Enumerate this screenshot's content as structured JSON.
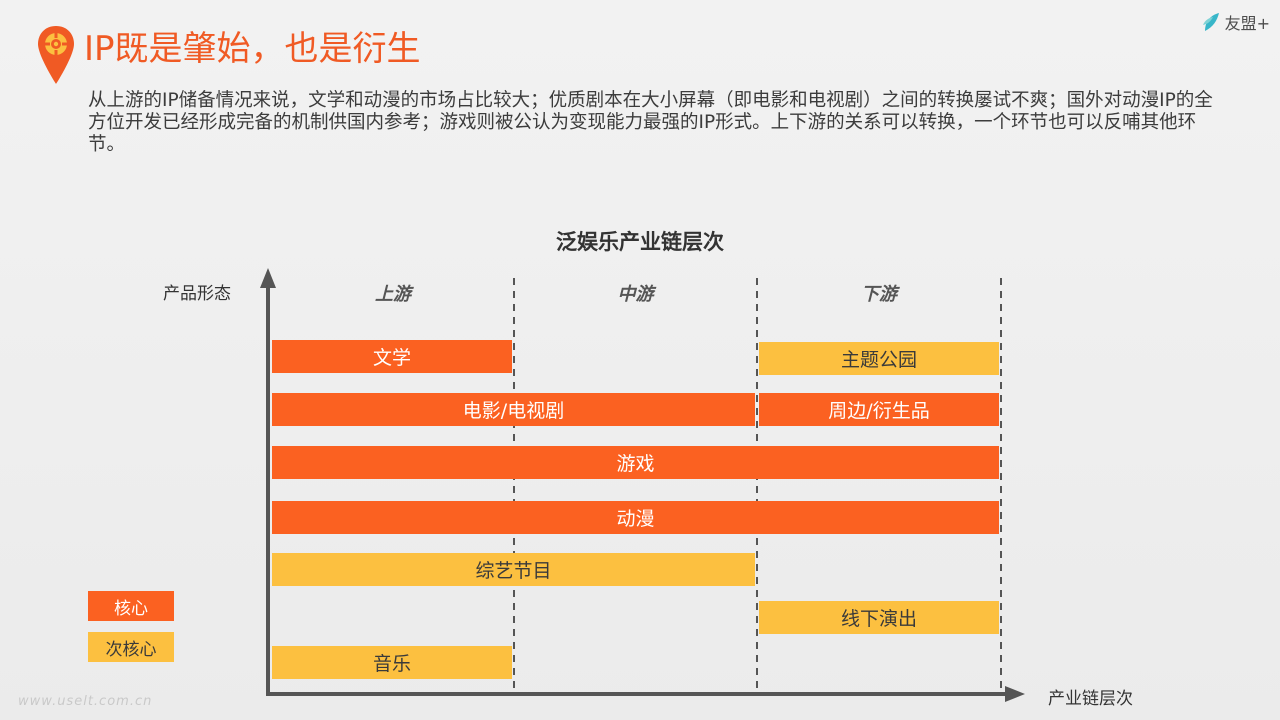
{
  "header": {
    "title": "IP既是肇始，也是衍生",
    "brand": "友盟+"
  },
  "intro": "从上游的IP储备情况来说，文学和动漫的市场占比较大；优质剧本在大小屏幕（即电影和电视剧）之间的转换屡试不爽；国外对动漫IP的全方位开发已经形成完备的机制供国内参考；游戏则被公认为变现能力最强的IP形式。上下游的关系可以转换，一个环节也可以反哺其他环节。",
  "colors": {
    "title": "#f05a24",
    "core": "#fb6121",
    "secondary": "#fcc040"
  },
  "chart_data": {
    "type": "diagram",
    "title": "泛娱乐产业链层次",
    "ylabel": "产品形态",
    "xlabel": "产业链层次",
    "stages": [
      "上游",
      "中游",
      "下游"
    ],
    "bars": [
      {
        "label": "文学",
        "start": 0,
        "end": 1,
        "kind": "core"
      },
      {
        "label": "主题公园",
        "start": 2,
        "end": 3,
        "kind": "secondary"
      },
      {
        "label": "电影/电视剧",
        "start": 0,
        "end": 2,
        "kind": "core"
      },
      {
        "label": "周边/衍生品",
        "start": 2,
        "end": 3,
        "kind": "core"
      },
      {
        "label": "游戏",
        "start": 0,
        "end": 3,
        "kind": "core"
      },
      {
        "label": "动漫",
        "start": 0,
        "end": 3,
        "kind": "core"
      },
      {
        "label": "综艺节目",
        "start": 0,
        "end": 2,
        "kind": "secondary"
      },
      {
        "label": "线下演出",
        "start": 2,
        "end": 3,
        "kind": "secondary"
      },
      {
        "label": "音乐",
        "start": 0,
        "end": 1,
        "kind": "secondary"
      }
    ],
    "legend": [
      {
        "label": "核心",
        "kind": "core"
      },
      {
        "label": "次核心",
        "kind": "secondary"
      }
    ]
  },
  "watermark": "www.uselt.com.cn"
}
